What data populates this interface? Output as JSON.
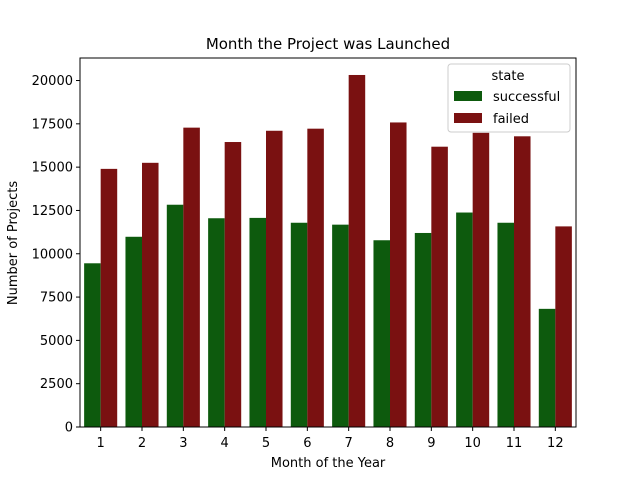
{
  "chart_data": {
    "type": "bar",
    "title": "Month the Project was Launched",
    "xlabel": "Month of the Year",
    "ylabel": "Number of Projects",
    "categories": [
      "1",
      "2",
      "3",
      "4",
      "5",
      "6",
      "7",
      "8",
      "9",
      "10",
      "11",
      "12"
    ],
    "series": [
      {
        "name": "successful",
        "color": "#0d5a0d",
        "values": [
          9450,
          10980,
          12830,
          12050,
          12070,
          11790,
          11680,
          10780,
          11200,
          12380,
          11790,
          6820
        ]
      },
      {
        "name": "failed",
        "color": "#7a1111",
        "values": [
          14900,
          15250,
          17280,
          16450,
          17100,
          17220,
          20320,
          17580,
          16180,
          16980,
          16780,
          11580
        ]
      }
    ],
    "ylim": [
      0,
      21300
    ],
    "yticks": [
      0,
      2500,
      5000,
      7500,
      10000,
      12500,
      15000,
      17500,
      20000
    ],
    "legend": {
      "title": "state",
      "position": "top-right"
    },
    "grid": false
  }
}
